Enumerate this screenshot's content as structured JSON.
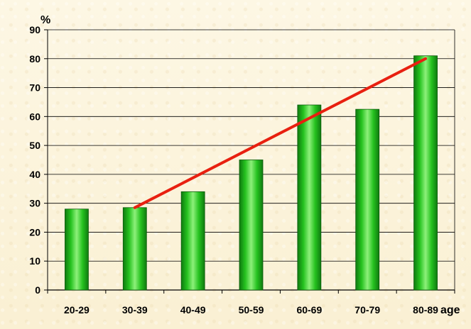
{
  "chart_data": {
    "type": "bar",
    "categories": [
      "20-29",
      "30-39",
      "40-49",
      "50-59",
      "60-69",
      "70-79",
      "80-89"
    ],
    "values": [
      28,
      28.5,
      34,
      45,
      64,
      62.5,
      81
    ],
    "ylim": [
      0,
      90
    ],
    "yticks": [
      0,
      10,
      20,
      30,
      40,
      50,
      60,
      70,
      80,
      90
    ],
    "ylabel": "%",
    "xlabel": "age",
    "grid": true,
    "bar_color": "#22b818",
    "trend_line": {
      "from_category": "30-39",
      "to_category": "80-89",
      "start_value": 28.5,
      "end_value": 80,
      "color": "#e82010"
    }
  }
}
